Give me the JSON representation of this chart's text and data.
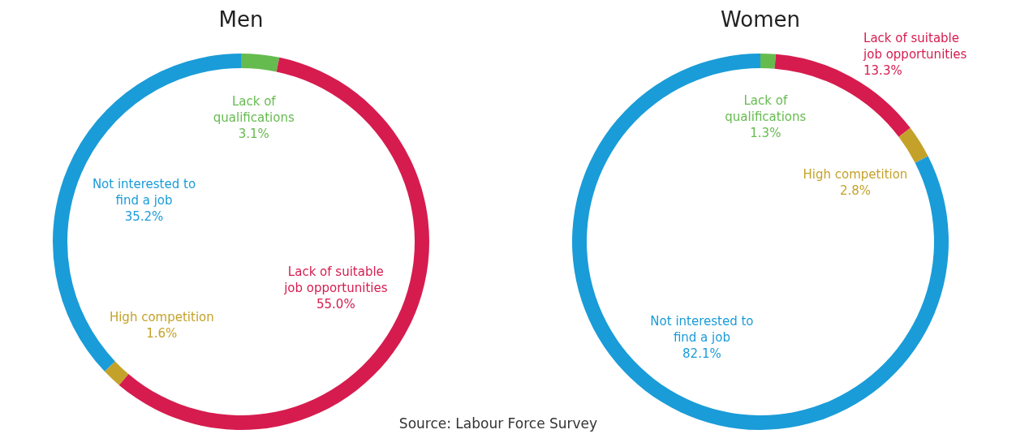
{
  "chart_data": [
    {
      "type": "donut",
      "title": "Men",
      "categories": [
        "Lack of qualifications",
        "Lack of suitable job opportunities",
        "High competition",
        "Not interested to find a job"
      ],
      "values": [
        3.1,
        55.0,
        1.6,
        35.2
      ],
      "value_labels": [
        "3.1%",
        "55.0%",
        "1.6%",
        "35.2%"
      ],
      "colors": [
        "#66bb4f",
        "#d61c4e",
        "#c4a22a",
        "#1a9cd8"
      ],
      "annotations": [
        "Source: Labour Force Survey"
      ]
    },
    {
      "type": "donut",
      "title": "Women",
      "categories": [
        "Lack of qualifications",
        "Lack of suitable job opportunities",
        "High competition",
        "Not interested to find a job"
      ],
      "values": [
        1.3,
        13.3,
        2.8,
        82.1
      ],
      "value_labels": [
        "1.3%",
        "13.3%",
        "2.8%",
        "82.1%"
      ],
      "colors": [
        "#66bb4f",
        "#d61c4e",
        "#c4a22a",
        "#1a9cd8"
      ]
    }
  ]
}
